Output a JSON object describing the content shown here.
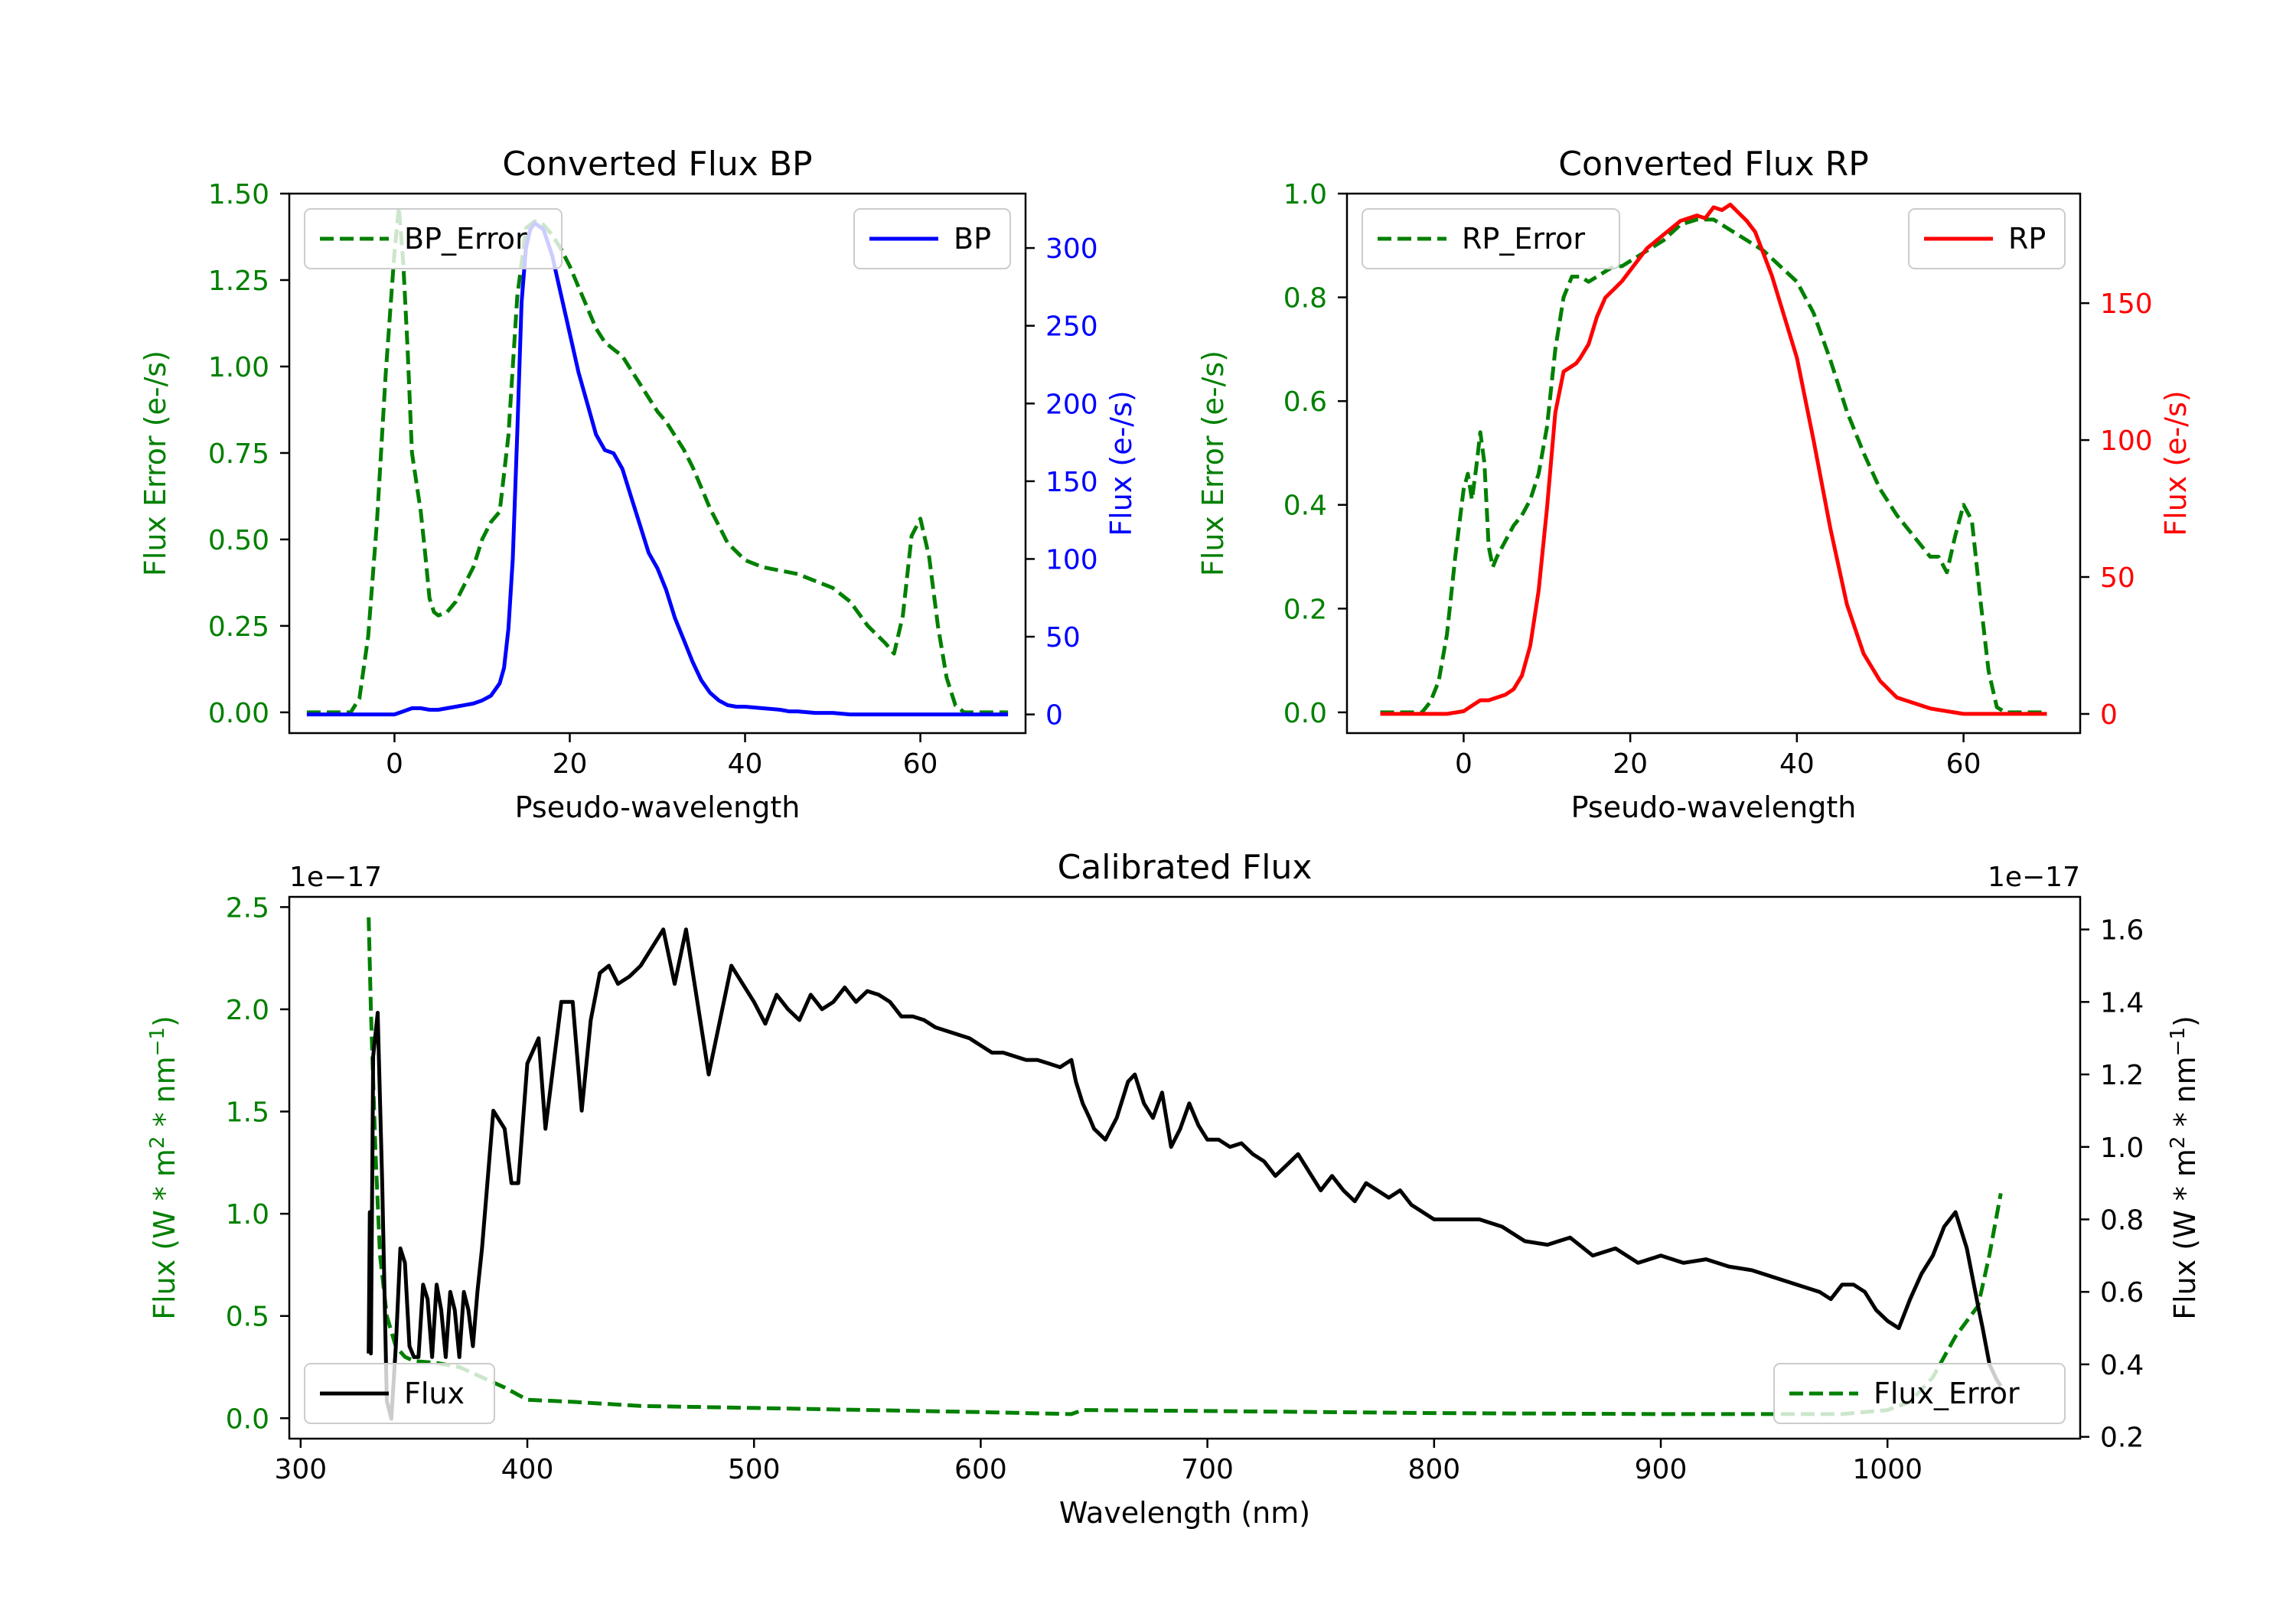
{
  "chart_data": [
    {
      "id": "bp",
      "type": "line",
      "title": "Converted Flux BP",
      "xlabel": "Pseudo-wavelength",
      "ylabel_left": "Flux Error (e-/s)",
      "ylabel_right": "Flux (e-/s)",
      "xlim": [
        -12,
        72
      ],
      "ylim_left": [
        -0.06,
        1.5
      ],
      "ylim_right": [
        -12,
        335
      ],
      "xticks": [
        0,
        20,
        40,
        60
      ],
      "yticks_left": [
        "0.00",
        "0.25",
        "0.50",
        "0.75",
        "1.00",
        "1.25",
        "1.50"
      ],
      "yticks_right": [
        "0",
        "50",
        "100",
        "150",
        "200",
        "250",
        "300"
      ],
      "left_color": "#008000",
      "right_color": "#0000ff",
      "series": [
        {
          "name": "BP_Error",
          "axis": "left",
          "color": "#008000",
          "dash": true,
          "x": [
            -10,
            -5,
            -4,
            -3,
            -2,
            -1,
            0,
            0.5,
            1,
            1.5,
            2,
            3,
            3.5,
            4,
            4.5,
            5,
            6,
            7,
            8,
            9,
            10,
            11,
            12,
            13,
            14,
            15,
            16,
            17,
            18,
            19,
            20,
            21,
            22,
            23,
            24,
            25,
            26,
            27,
            28,
            29,
            30,
            31,
            32,
            33,
            34,
            35,
            36,
            37,
            38,
            40,
            42,
            44,
            46,
            48,
            50,
            52,
            54,
            56,
            57,
            58,
            59,
            60,
            61,
            62,
            63,
            64,
            65,
            70
          ],
          "y": [
            0,
            0,
            0.04,
            0.22,
            0.55,
            0.98,
            1.33,
            1.46,
            1.3,
            1.05,
            0.75,
            0.58,
            0.46,
            0.33,
            0.29,
            0.28,
            0.29,
            0.32,
            0.37,
            0.42,
            0.5,
            0.55,
            0.58,
            0.8,
            1.2,
            1.4,
            1.42,
            1.41,
            1.38,
            1.34,
            1.29,
            1.23,
            1.17,
            1.11,
            1.07,
            1.05,
            1.03,
            0.99,
            0.95,
            0.91,
            0.87,
            0.84,
            0.8,
            0.76,
            0.71,
            0.65,
            0.59,
            0.54,
            0.49,
            0.44,
            0.42,
            0.41,
            0.4,
            0.38,
            0.36,
            0.32,
            0.25,
            0.2,
            0.17,
            0.28,
            0.51,
            0.56,
            0.45,
            0.25,
            0.1,
            0.02,
            0,
            0
          ]
        },
        {
          "name": "BP",
          "axis": "right",
          "color": "#0000ff",
          "dash": false,
          "x": [
            -10,
            -6,
            -4,
            -2,
            -1,
            0,
            1,
            2,
            3,
            4,
            5,
            6,
            7,
            8,
            9,
            10,
            11,
            12,
            12.5,
            13,
            13.5,
            14,
            14.5,
            15,
            15.5,
            16,
            17,
            18,
            19,
            20,
            21,
            22,
            23,
            24,
            25,
            26,
            27,
            28,
            29,
            30,
            31,
            32,
            33,
            34,
            35,
            36,
            37,
            38,
            39,
            40,
            42,
            44,
            45,
            46,
            48,
            50,
            52,
            55,
            58,
            60,
            62,
            64,
            66,
            70
          ],
          "y": [
            0,
            0,
            0,
            0,
            0,
            0,
            2,
            4,
            4,
            3,
            3,
            4,
            5,
            6,
            7,
            9,
            12,
            20,
            30,
            55,
            100,
            180,
            265,
            300,
            312,
            316,
            312,
            295,
            270,
            245,
            220,
            200,
            180,
            170,
            168,
            158,
            140,
            122,
            104,
            94,
            80,
            62,
            48,
            34,
            22,
            14,
            9,
            6,
            5,
            5,
            4,
            3,
            2,
            2,
            1,
            1,
            0,
            0,
            0,
            0,
            0,
            0,
            0,
            0
          ]
        }
      ],
      "legend": [
        {
          "label": "BP_Error",
          "loc": "upper left"
        },
        {
          "label": "BP",
          "loc": "upper right"
        }
      ]
    },
    {
      "id": "rp",
      "type": "line",
      "title": "Converted Flux RP",
      "xlabel": "Pseudo-wavelength",
      "ylabel_left": "Flux Error (e-/s)",
      "ylabel_right": "Flux (e-/s)",
      "xlim": [
        -14,
        74
      ],
      "ylim_left": [
        -0.04,
        1.0
      ],
      "ylim_right": [
        -7,
        190
      ],
      "xticks": [
        0,
        20,
        40,
        60
      ],
      "yticks_left": [
        "0.0",
        "0.2",
        "0.4",
        "0.6",
        "0.8",
        "1.0"
      ],
      "yticks_right": [
        "0",
        "50",
        "100",
        "150"
      ],
      "left_color": "#008000",
      "right_color": "#ff0000",
      "series": [
        {
          "name": "RP_Error",
          "axis": "left",
          "color": "#008000",
          "dash": true,
          "x": [
            -10,
            -5,
            -4,
            -3,
            -2,
            -1,
            0,
            0.5,
            1,
            1.5,
            2,
            2.5,
            3,
            3.5,
            4,
            5,
            6,
            7,
            8,
            9,
            10,
            11,
            12,
            13,
            14,
            15,
            16,
            17,
            18,
            19,
            20,
            22,
            24,
            26,
            28,
            30,
            32,
            34,
            36,
            38,
            40,
            42,
            44,
            46,
            48,
            50,
            52,
            54,
            56,
            57,
            58,
            59,
            60,
            61,
            62,
            63,
            64,
            65,
            70
          ],
          "y": [
            0,
            0,
            0.02,
            0.06,
            0.15,
            0.3,
            0.43,
            0.46,
            0.41,
            0.47,
            0.54,
            0.48,
            0.32,
            0.28,
            0.3,
            0.33,
            0.36,
            0.38,
            0.41,
            0.46,
            0.55,
            0.7,
            0.8,
            0.84,
            0.84,
            0.83,
            0.84,
            0.85,
            0.86,
            0.86,
            0.87,
            0.89,
            0.91,
            0.94,
            0.95,
            0.95,
            0.93,
            0.91,
            0.89,
            0.86,
            0.83,
            0.77,
            0.68,
            0.58,
            0.5,
            0.43,
            0.38,
            0.34,
            0.3,
            0.3,
            0.27,
            0.34,
            0.4,
            0.37,
            0.22,
            0.08,
            0.01,
            0,
            0
          ]
        },
        {
          "name": "RP",
          "axis": "right",
          "color": "#ff0000",
          "dash": false,
          "x": [
            -10,
            -4,
            -2,
            0,
            1,
            2,
            3,
            4,
            5,
            6,
            7,
            8,
            9,
            10,
            11,
            12,
            12.5,
            13,
            13.5,
            14,
            15,
            16,
            17,
            18,
            19,
            20,
            22,
            24,
            26,
            28,
            29,
            30,
            31,
            32,
            33,
            34,
            35,
            36,
            37,
            38,
            40,
            42,
            44,
            46,
            48,
            50,
            52,
            54,
            56,
            58,
            60,
            62,
            64,
            66,
            70
          ],
          "y": [
            0,
            0,
            0,
            1,
            3,
            5,
            5,
            6,
            7,
            9,
            14,
            25,
            45,
            75,
            110,
            125,
            126,
            127,
            128,
            130,
            135,
            145,
            152,
            155,
            158,
            162,
            170,
            175,
            180,
            182,
            181,
            185,
            184,
            186,
            183,
            180,
            176,
            168,
            160,
            150,
            130,
            100,
            68,
            40,
            22,
            12,
            6,
            4,
            2,
            1,
            0,
            0,
            0,
            0,
            0
          ]
        }
      ],
      "legend": [
        {
          "label": "RP_Error",
          "loc": "upper left"
        },
        {
          "label": "RP",
          "loc": "upper right"
        }
      ]
    },
    {
      "id": "cal",
      "type": "line",
      "title": "Calibrated Flux",
      "xlabel": "Wavelength (nm)",
      "ylabel_left": "Flux (W * m^2 * nm^-1)",
      "ylabel_right": "Flux (W * m^2 * nm^-1)",
      "offset_left": "1e−17",
      "offset_right": "1e−17",
      "xlim": [
        295,
        1085
      ],
      "ylim_left": [
        -0.1,
        2.55
      ],
      "ylim_right": [
        0.195,
        1.69
      ],
      "xticks": [
        300,
        400,
        500,
        600,
        700,
        800,
        900,
        1000
      ],
      "yticks_left": [
        "0.0",
        "0.5",
        "1.0",
        "1.5",
        "2.0",
        "2.5"
      ],
      "yticks_right": [
        "0.2",
        "0.4",
        "0.6",
        "0.8",
        "1.0",
        "1.2",
        "1.4",
        "1.6"
      ],
      "left_color": "#008000",
      "right_color": "#000000",
      "series": [
        {
          "name": "Flux_Error",
          "axis": "left",
          "color": "#008000",
          "dash": true,
          "x": [
            330,
            331,
            333,
            335,
            338,
            342,
            346,
            350,
            360,
            370,
            380,
            390,
            400,
            420,
            450,
            500,
            550,
            600,
            640,
            645,
            700,
            800,
            900,
            950,
            980,
            1000,
            1010,
            1020,
            1030,
            1040,
            1045,
            1050
          ],
          "y": [
            2.45,
            2.0,
            1.3,
            0.8,
            0.5,
            0.35,
            0.3,
            0.28,
            0.27,
            0.25,
            0.2,
            0.15,
            0.09,
            0.08,
            0.06,
            0.05,
            0.04,
            0.03,
            0.02,
            0.04,
            0.035,
            0.025,
            0.02,
            0.02,
            0.02,
            0.04,
            0.08,
            0.2,
            0.4,
            0.55,
            0.8,
            1.1
          ]
        },
        {
          "name": "Flux",
          "axis": "right",
          "color": "#000000",
          "dash": false,
          "x": [
            330,
            330.5,
            331,
            332,
            334,
            336,
            338,
            340,
            342,
            344,
            346,
            348,
            350,
            352,
            354,
            356,
            358,
            360,
            362,
            364,
            366,
            368,
            370,
            372,
            374,
            376,
            378,
            380,
            385,
            390,
            393,
            396,
            400,
            405,
            408,
            410,
            415,
            420,
            424,
            428,
            432,
            436,
            440,
            445,
            450,
            455,
            460,
            465,
            470,
            475,
            480,
            485,
            490,
            495,
            500,
            505,
            510,
            515,
            520,
            525,
            530,
            535,
            540,
            545,
            550,
            555,
            560,
            565,
            570,
            575,
            580,
            585,
            590,
            595,
            600,
            605,
            610,
            615,
            620,
            625,
            630,
            635,
            640,
            642,
            645,
            648,
            650,
            655,
            660,
            665,
            668,
            672,
            676,
            680,
            684,
            688,
            692,
            696,
            700,
            705,
            710,
            715,
            720,
            725,
            730,
            735,
            740,
            745,
            750,
            755,
            760,
            765,
            770,
            775,
            780,
            785,
            790,
            795,
            800,
            810,
            820,
            830,
            840,
            850,
            860,
            870,
            880,
            890,
            900,
            910,
            920,
            930,
            940,
            950,
            960,
            970,
            975,
            980,
            985,
            990,
            995,
            1000,
            1005,
            1010,
            1015,
            1020,
            1025,
            1030,
            1035,
            1040,
            1042,
            1045,
            1048,
            1050
          ],
          "y": [
            0.43,
            0.82,
            0.43,
            1.25,
            1.37,
            0.9,
            0.3,
            0.25,
            0.45,
            0.72,
            0.68,
            0.45,
            0.42,
            0.42,
            0.62,
            0.58,
            0.42,
            0.62,
            0.55,
            0.42,
            0.6,
            0.55,
            0.42,
            0.6,
            0.55,
            0.45,
            0.6,
            0.72,
            1.1,
            1.05,
            0.9,
            0.9,
            1.23,
            1.3,
            1.05,
            1.15,
            1.4,
            1.4,
            1.1,
            1.35,
            1.48,
            1.5,
            1.45,
            1.47,
            1.5,
            1.55,
            1.6,
            1.45,
            1.6,
            1.4,
            1.2,
            1.35,
            1.5,
            1.45,
            1.4,
            1.34,
            1.42,
            1.38,
            1.35,
            1.42,
            1.38,
            1.4,
            1.44,
            1.4,
            1.43,
            1.42,
            1.4,
            1.36,
            1.36,
            1.35,
            1.33,
            1.32,
            1.31,
            1.3,
            1.28,
            1.26,
            1.26,
            1.25,
            1.24,
            1.24,
            1.23,
            1.22,
            1.24,
            1.18,
            1.12,
            1.08,
            1.05,
            1.02,
            1.08,
            1.18,
            1.2,
            1.12,
            1.08,
            1.15,
            1.0,
            1.05,
            1.12,
            1.06,
            1.02,
            1.02,
            1.0,
            1.01,
            0.98,
            0.96,
            0.92,
            0.95,
            0.98,
            0.93,
            0.88,
            0.92,
            0.88,
            0.85,
            0.9,
            0.88,
            0.86,
            0.88,
            0.84,
            0.82,
            0.8,
            0.8,
            0.8,
            0.78,
            0.74,
            0.73,
            0.75,
            0.7,
            0.72,
            0.68,
            0.7,
            0.68,
            0.69,
            0.67,
            0.66,
            0.64,
            0.62,
            0.6,
            0.58,
            0.62,
            0.62,
            0.6,
            0.55,
            0.52,
            0.5,
            0.58,
            0.65,
            0.7,
            0.78,
            0.82,
            0.72,
            0.56,
            0.5,
            0.4,
            0.36,
            0.34
          ]
        }
      ],
      "legend": [
        {
          "label": "Flux",
          "loc": "lower left"
        },
        {
          "label": "Flux_Error",
          "loc": "lower right"
        }
      ]
    }
  ]
}
